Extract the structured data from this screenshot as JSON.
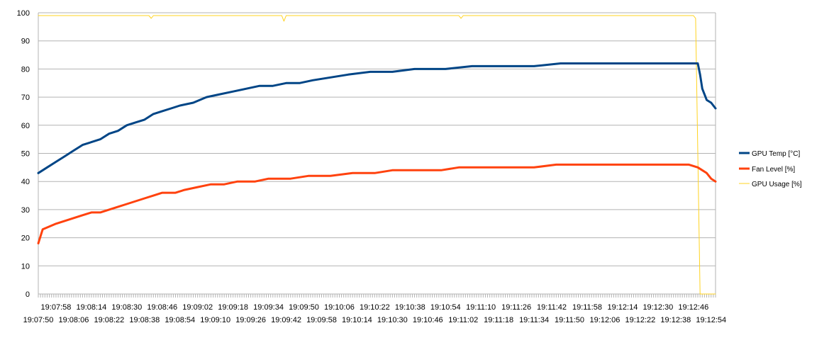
{
  "chart_data": {
    "type": "line",
    "title": "",
    "xlabel": "",
    "ylabel": "",
    "ylim": [
      0,
      100
    ],
    "yticks": [
      0,
      10,
      20,
      30,
      40,
      50,
      60,
      70,
      80,
      90,
      100
    ],
    "grid": true,
    "legend_position": "right",
    "x_start": "19:07:50",
    "x_end": "19:12:56",
    "sample_interval_seconds": 1,
    "x_tick_labels_row1": [
      "19:07:58",
      "19:08:14",
      "19:08:30",
      "19:08:46",
      "19:09:02",
      "19:09:18",
      "19:09:34",
      "19:09:50",
      "19:10:06",
      "19:10:22",
      "19:10:38",
      "19:10:54",
      "19:11:10",
      "19:11:26",
      "19:11:42",
      "19:11:58",
      "19:12:14",
      "19:12:30",
      "19:12:46"
    ],
    "x_tick_labels_row2": [
      "19:07:50",
      "19:08:06",
      "19:08:22",
      "19:08:38",
      "19:08:54",
      "19:09:10",
      "19:09:26",
      "19:09:42",
      "19:09:58",
      "19:10:14",
      "19:10:30",
      "19:10:46",
      "19:11:02",
      "19:11:18",
      "19:11:34",
      "19:11:50",
      "19:12:06",
      "19:12:22",
      "19:12:38",
      "19:12:54"
    ],
    "series": [
      {
        "name": "GPU Temp [°C]",
        "color": "#004586",
        "width": 3,
        "points": [
          [
            "19:07:50",
            43
          ],
          [
            "19:07:54",
            45
          ],
          [
            "19:07:58",
            47
          ],
          [
            "19:08:02",
            49
          ],
          [
            "19:08:06",
            51
          ],
          [
            "19:08:10",
            53
          ],
          [
            "19:08:14",
            54
          ],
          [
            "19:08:18",
            55
          ],
          [
            "19:08:22",
            57
          ],
          [
            "19:08:26",
            58
          ],
          [
            "19:08:30",
            60
          ],
          [
            "19:08:34",
            61
          ],
          [
            "19:08:38",
            62
          ],
          [
            "19:08:42",
            64
          ],
          [
            "19:08:46",
            65
          ],
          [
            "19:08:50",
            66
          ],
          [
            "19:08:54",
            67
          ],
          [
            "19:09:00",
            68
          ],
          [
            "19:09:06",
            70
          ],
          [
            "19:09:12",
            71
          ],
          [
            "19:09:18",
            72
          ],
          [
            "19:09:24",
            73
          ],
          [
            "19:09:30",
            74
          ],
          [
            "19:09:36",
            74
          ],
          [
            "19:09:42",
            75
          ],
          [
            "19:09:48",
            75
          ],
          [
            "19:09:54",
            76
          ],
          [
            "19:10:02",
            77
          ],
          [
            "19:10:10",
            78
          ],
          [
            "19:10:20",
            79
          ],
          [
            "19:10:30",
            79
          ],
          [
            "19:10:40",
            80
          ],
          [
            "19:10:54",
            80
          ],
          [
            "19:11:06",
            81
          ],
          [
            "19:11:20",
            81
          ],
          [
            "19:11:34",
            81
          ],
          [
            "19:11:46",
            82
          ],
          [
            "19:11:58",
            82
          ],
          [
            "19:12:10",
            82
          ],
          [
            "19:12:22",
            82
          ],
          [
            "19:12:34",
            82
          ],
          [
            "19:12:44",
            82
          ],
          [
            "19:12:48",
            82
          ],
          [
            "19:12:49",
            78
          ],
          [
            "19:12:50",
            73
          ],
          [
            "19:12:51",
            71
          ],
          [
            "19:12:52",
            69
          ],
          [
            "19:12:54",
            68
          ],
          [
            "19:12:56",
            66
          ]
        ]
      },
      {
        "name": "Fan Level [%]",
        "color": "#ff420e",
        "width": 3,
        "points": [
          [
            "19:07:50",
            18
          ],
          [
            "19:07:52",
            23
          ],
          [
            "19:07:55",
            24
          ],
          [
            "19:07:58",
            25
          ],
          [
            "19:08:02",
            26
          ],
          [
            "19:08:06",
            27
          ],
          [
            "19:08:10",
            28
          ],
          [
            "19:08:14",
            29
          ],
          [
            "19:08:18",
            29
          ],
          [
            "19:08:22",
            30
          ],
          [
            "19:08:26",
            31
          ],
          [
            "19:08:30",
            32
          ],
          [
            "19:08:34",
            33
          ],
          [
            "19:08:38",
            34
          ],
          [
            "19:08:42",
            35
          ],
          [
            "19:08:46",
            36
          ],
          [
            "19:08:52",
            36
          ],
          [
            "19:08:56",
            37
          ],
          [
            "19:09:02",
            38
          ],
          [
            "19:09:08",
            39
          ],
          [
            "19:09:14",
            39
          ],
          [
            "19:09:20",
            40
          ],
          [
            "19:09:28",
            40
          ],
          [
            "19:09:34",
            41
          ],
          [
            "19:09:44",
            41
          ],
          [
            "19:09:52",
            42
          ],
          [
            "19:10:02",
            42
          ],
          [
            "19:10:12",
            43
          ],
          [
            "19:10:22",
            43
          ],
          [
            "19:10:30",
            44
          ],
          [
            "19:10:40",
            44
          ],
          [
            "19:10:52",
            44
          ],
          [
            "19:11:00",
            45
          ],
          [
            "19:11:12",
            45
          ],
          [
            "19:11:24",
            45
          ],
          [
            "19:11:34",
            45
          ],
          [
            "19:11:44",
            46
          ],
          [
            "19:11:56",
            46
          ],
          [
            "19:12:08",
            46
          ],
          [
            "19:12:20",
            46
          ],
          [
            "19:12:32",
            46
          ],
          [
            "19:12:44",
            46
          ],
          [
            "19:12:48",
            45
          ],
          [
            "19:12:50",
            44
          ],
          [
            "19:12:52",
            43
          ],
          [
            "19:12:54",
            41
          ],
          [
            "19:12:56",
            40
          ]
        ]
      },
      {
        "name": "GPU Usage [%]",
        "color": "#ffd320",
        "width": 1,
        "points": [
          [
            "19:07:50",
            99
          ],
          [
            "19:08:40",
            99
          ],
          [
            "19:08:41",
            98
          ],
          [
            "19:08:42",
            99
          ],
          [
            "19:09:40",
            99
          ],
          [
            "19:09:41",
            97
          ],
          [
            "19:09:42",
            99
          ],
          [
            "19:11:00",
            99
          ],
          [
            "19:11:01",
            98
          ],
          [
            "19:11:02",
            99
          ],
          [
            "19:12:44",
            99
          ],
          [
            "19:12:46",
            99
          ],
          [
            "19:12:47",
            98
          ],
          [
            "19:12:48",
            50
          ],
          [
            "19:12:49",
            0
          ],
          [
            "19:12:56",
            0
          ]
        ]
      }
    ]
  }
}
